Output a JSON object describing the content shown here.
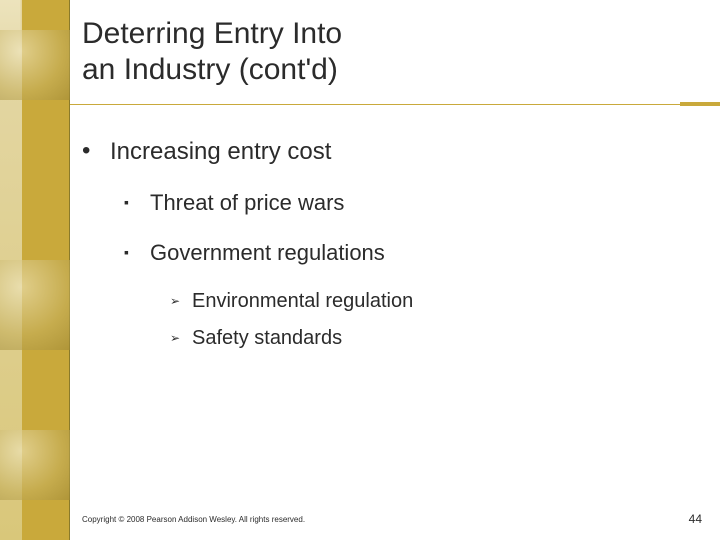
{
  "title": {
    "line1": "Deterring Entry Into",
    "line2": "an Industry (cont'd)"
  },
  "bullets": {
    "lvl1": "Increasing entry cost",
    "lvl2a": "Threat of price wars",
    "lvl2b": "Government regulations",
    "lvl3a": "Environmental regulation",
    "lvl3b": "Safety standards"
  },
  "footer": {
    "copyright": "Copyright © 2008 Pearson Addison Wesley. All rights reserved.",
    "page": "44"
  },
  "style": {
    "accent_color": "#c9a93b",
    "title_fontsize": 30,
    "lvl1_fontsize": 24,
    "lvl2_fontsize": 22,
    "lvl3_fontsize": 20,
    "bullet_lvl1": "•",
    "bullet_lvl2": "▪",
    "bullet_lvl3": "➢"
  }
}
